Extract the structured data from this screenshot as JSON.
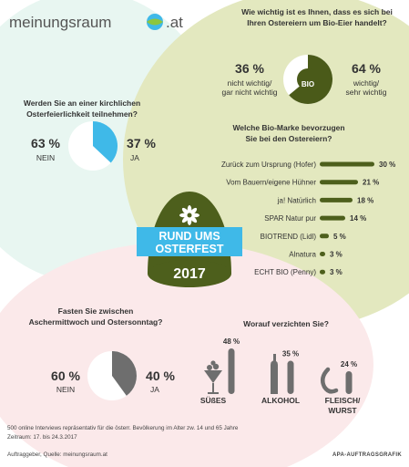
{
  "brand": {
    "logo_text": "meinungsraum",
    "logo_suffix": ".at"
  },
  "center_badge": {
    "line1": "RUND UMS",
    "line2": "OSTERFEST",
    "year": "2017"
  },
  "colors": {
    "cyan": "#3fb9e8",
    "olive": "#4d5f1c",
    "green_bg": "#e3e8bf",
    "mint_bg": "#e8f6f1",
    "pink_bg": "#fbe9ea",
    "gray": "#6e6e6e",
    "bio_dark": "#4a5a19"
  },
  "q_bio": {
    "question_line1": "Wie wichtig ist es Ihnen, dass es sich bei",
    "question_line2": "Ihren Ostereiern um Bio-Eier handelt?",
    "center_label": "BIO",
    "left_pct": "36 %",
    "left_l1": "nicht wichtig/",
    "left_l2": "gar nicht wichtig",
    "right_pct": "64 %",
    "right_l1": "wichtig/",
    "right_l2": "sehr wichtig"
  },
  "q_church": {
    "question_line1": "Werden Sie an einer kirchlichen",
    "question_line2": "Osterfeierlichkeit teilnehmen?",
    "left_pct": "63 %",
    "left_label": "NEIN",
    "right_pct": "37 %",
    "right_label": "JA"
  },
  "q_fast": {
    "question_line1": "Fasten Sie zwischen",
    "question_line2": "Aschermittwoch und Ostersonntag?",
    "left_pct": "60 %",
    "left_label": "NEIN",
    "right_pct": "40 %",
    "right_label": "JA"
  },
  "q_brand": {
    "question_line1": "Welche Bio-Marke bevorzugen",
    "question_line2": "Sie bei den Ostereiern?"
  },
  "q_renounce": {
    "question": "Worauf verzichten Sie?"
  },
  "chart_data": [
    {
      "type": "pie",
      "title": "Wie wichtig ist es Ihnen, dass es sich bei Ihren Ostereiern um Bio-Eier handelt?",
      "slices": [
        {
          "label": "nicht wichtig/ gar nicht wichtig",
          "value": 36
        },
        {
          "label": "wichtig/ sehr wichtig",
          "value": 64
        }
      ]
    },
    {
      "type": "pie",
      "title": "Werden Sie an einer kirchlichen Osterfeierlichkeit teilnehmen?",
      "slices": [
        {
          "label": "NEIN",
          "value": 63
        },
        {
          "label": "JA",
          "value": 37
        }
      ]
    },
    {
      "type": "bar",
      "title": "Welche Bio-Marke bevorzugen Sie bei den Ostereiern?",
      "categories": [
        "Zurück zum Ursprung (Hofer)",
        "Vom Bauern/eigene Hühner",
        "ja! Natürlich",
        "SPAR Natur pur",
        "BIOTREND (Lidl)",
        "Alnatura",
        "ECHT BIO (Penny)"
      ],
      "values": [
        30,
        21,
        18,
        14,
        5,
        3,
        3
      ],
      "value_labels": [
        "30 %",
        "21 %",
        "18 %",
        "14 %",
        "5 %",
        "3 %",
        "3 %"
      ]
    },
    {
      "type": "pie",
      "title": "Fasten Sie zwischen Aschermittwoch und Ostersonntag?",
      "slices": [
        {
          "label": "NEIN",
          "value": 60
        },
        {
          "label": "JA",
          "value": 40
        }
      ]
    },
    {
      "type": "bar",
      "title": "Worauf verzichten Sie?",
      "categories": [
        "SÜßES",
        "ALKOHOL",
        "FLEISCH/ WURST"
      ],
      "values": [
        48,
        35,
        24
      ],
      "value_labels": [
        "48 %",
        "35 %",
        "24 %"
      ]
    }
  ],
  "renounce_labels": [
    {
      "l1": "SÜßES",
      "l2": ""
    },
    {
      "l1": "ALKOHOL",
      "l2": ""
    },
    {
      "l1": "FLEISCH/",
      "l2": "WURST"
    }
  ],
  "footer": {
    "line1": "500 online Interviews repräsentativ für die österr. Bevölkerung im Alter zw. 14 und 65 Jahre",
    "line2": "Zeitraum: 17. bis 24.3.2017",
    "line3": "Auftraggeber, Quelle: meinungsraum.at",
    "credit": "APA-AUFTRAGSGRAFIK"
  }
}
